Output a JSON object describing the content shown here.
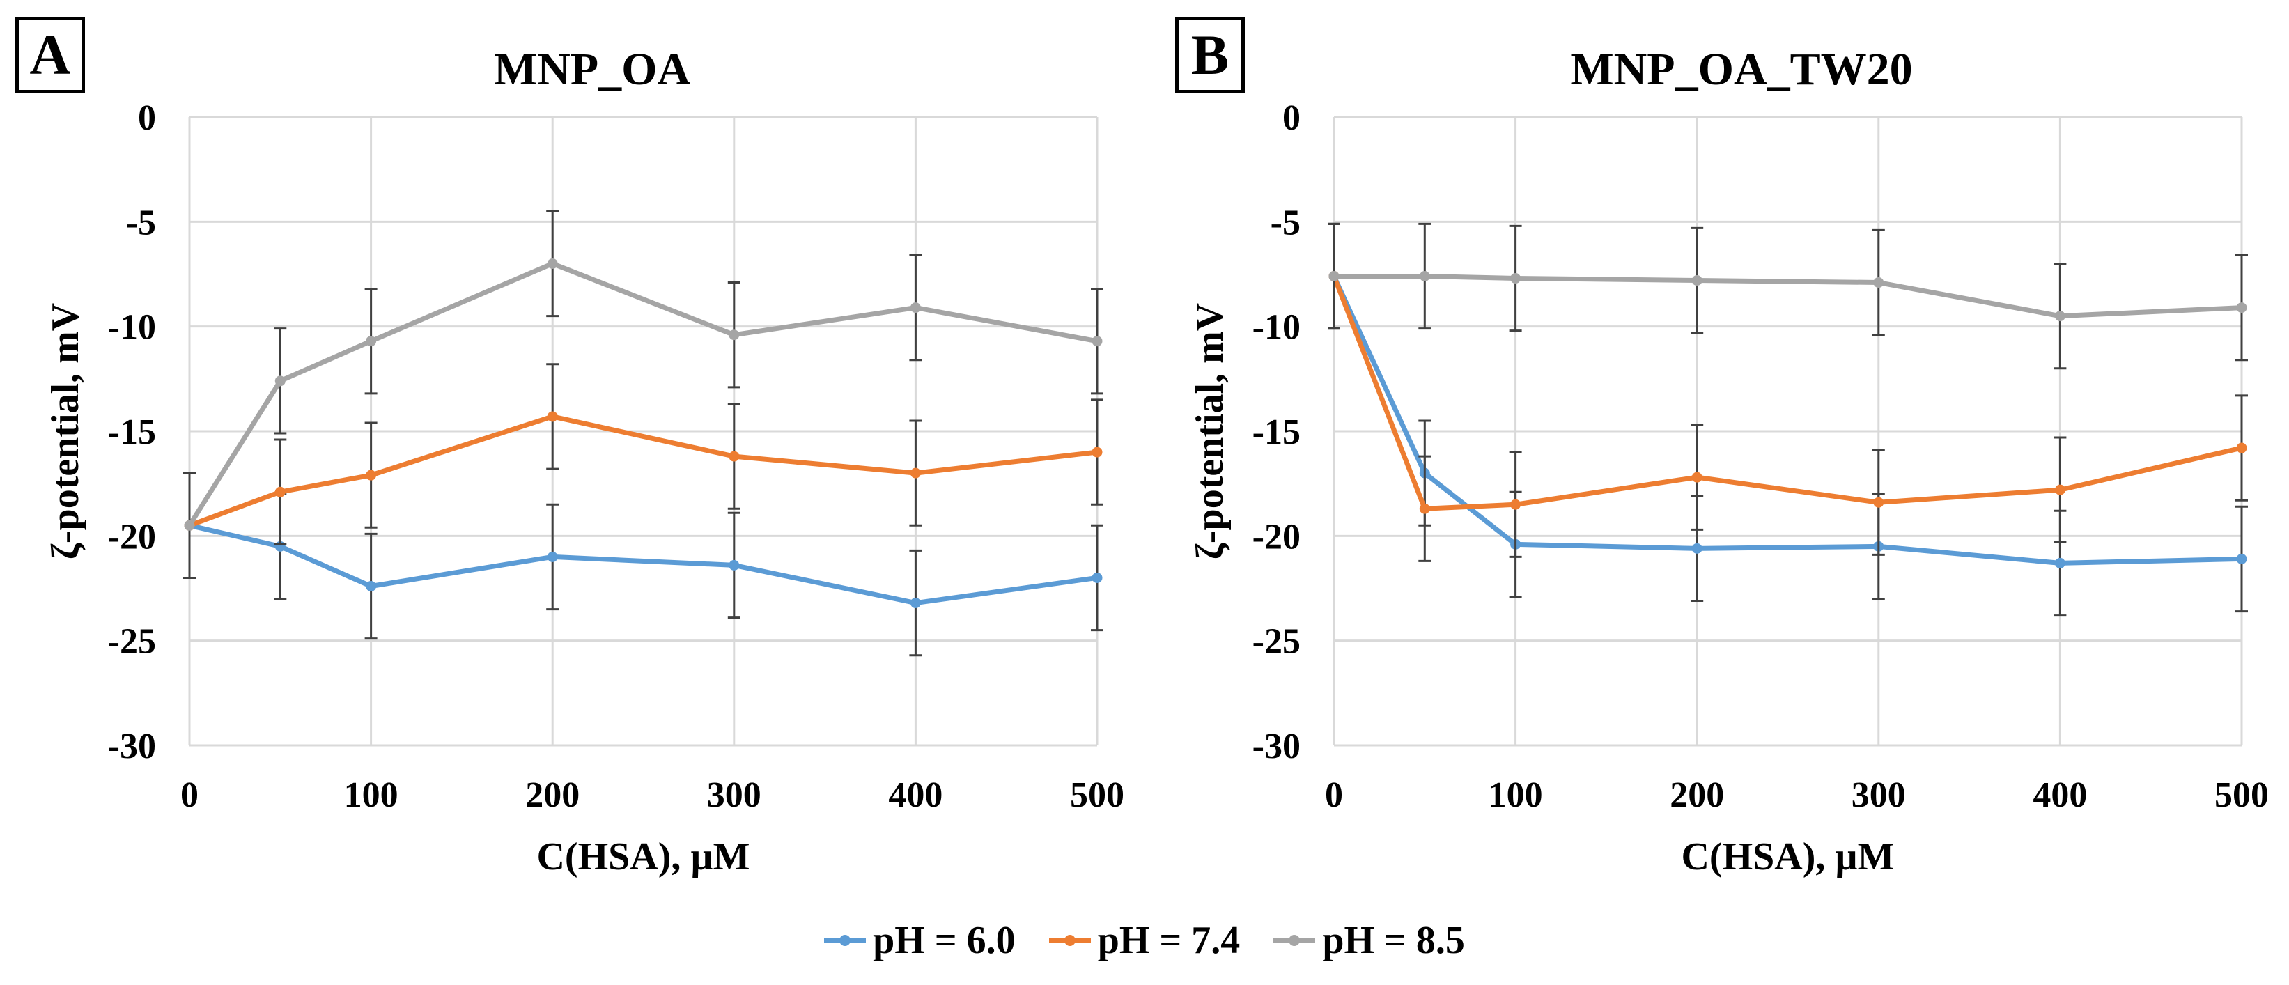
{
  "chart_data": [
    {
      "type": "line",
      "panel": "A",
      "title": "MNP_OA",
      "xlabel": "C(HSA), µM",
      "ylabel": "ζ-potential, mV",
      "x": [
        0,
        50,
        100,
        200,
        300,
        400,
        500
      ],
      "xticks": [
        0,
        100,
        200,
        300,
        400,
        500
      ],
      "yticks": [
        0,
        -5,
        -10,
        -15,
        -20,
        -25,
        -30
      ],
      "xlim": [
        0,
        500
      ],
      "ylim": [
        -30,
        0
      ],
      "grid": true,
      "series": [
        {
          "name": "pH = 6.0",
          "color": "#5b9bd5",
          "values": [
            -19.5,
            -20.5,
            -22.4,
            -21.0,
            -21.4,
            -23.2,
            -22.0
          ],
          "errors": [
            2.5,
            2.5,
            2.5,
            2.5,
            2.5,
            2.5,
            2.5
          ]
        },
        {
          "name": "pH = 7.4",
          "color": "#ed7d31",
          "values": [
            -19.5,
            -17.9,
            -17.1,
            -14.3,
            -16.2,
            -17.0,
            -16.0
          ],
          "errors": [
            2.5,
            2.5,
            2.5,
            2.5,
            2.5,
            2.5,
            2.5
          ]
        },
        {
          "name": "pH = 8.5",
          "color": "#a5a5a5",
          "values": [
            -19.5,
            -12.6,
            -10.7,
            -7.0,
            -10.4,
            -9.1,
            -10.7
          ],
          "errors": [
            2.5,
            2.5,
            2.5,
            2.5,
            2.5,
            2.5,
            2.5
          ]
        }
      ]
    },
    {
      "type": "line",
      "panel": "B",
      "title": "MNP_OA_TW20",
      "xlabel": "C(HSA), µM",
      "ylabel": "ζ-potential, mV",
      "x": [
        0,
        50,
        100,
        200,
        300,
        400,
        500
      ],
      "xticks": [
        0,
        100,
        200,
        300,
        400,
        500
      ],
      "yticks": [
        0,
        -5,
        -10,
        -15,
        -20,
        -25,
        -30
      ],
      "xlim": [
        0,
        500
      ],
      "ylim": [
        -30,
        0
      ],
      "grid": true,
      "series": [
        {
          "name": "pH = 6.0",
          "color": "#5b9bd5",
          "values": [
            -7.6,
            -17.0,
            -20.4,
            -20.6,
            -20.5,
            -21.3,
            -21.1
          ],
          "errors": [
            2.5,
            2.5,
            2.5,
            2.5,
            2.5,
            2.5,
            2.5
          ]
        },
        {
          "name": "pH = 7.4",
          "color": "#ed7d31",
          "values": [
            -7.6,
            -18.7,
            -18.5,
            -17.2,
            -18.4,
            -17.8,
            -15.8
          ],
          "errors": [
            2.5,
            2.5,
            2.5,
            2.5,
            2.5,
            2.5,
            2.5
          ]
        },
        {
          "name": "pH = 8.5",
          "color": "#a5a5a5",
          "values": [
            -7.6,
            -7.6,
            -7.7,
            -7.8,
            -7.9,
            -9.5,
            -9.1
          ],
          "errors": [
            2.5,
            2.5,
            2.5,
            2.5,
            2.5,
            2.5,
            2.5
          ]
        }
      ]
    }
  ],
  "legend": [
    {
      "label": "pH = 6.0",
      "color": "#5b9bd5"
    },
    {
      "label": "pH = 7.4",
      "color": "#ed7d31"
    },
    {
      "label": "pH = 8.5",
      "color": "#a5a5a5"
    }
  ]
}
